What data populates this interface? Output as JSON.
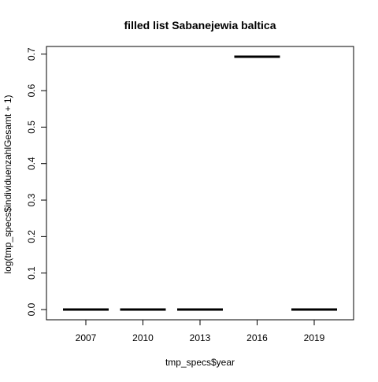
{
  "chart_data": {
    "type": "boxplot",
    "title": "filled list Sabanejewia baltica",
    "xlabel": "tmp_specs$year",
    "ylabel": "log(tmp_specs$individuenzahlGesamt + 1)",
    "categories": [
      "2007",
      "2010",
      "2013",
      "2016",
      "2019"
    ],
    "medians": [
      0,
      0,
      0,
      0.693,
      0
    ],
    "yticks": [
      0.0,
      0.1,
      0.2,
      0.3,
      0.4,
      0.5,
      0.6,
      0.7
    ],
    "ytick_labels": [
      "0.0",
      "0.1",
      "0.2",
      "0.3",
      "0.4",
      "0.5",
      "0.6",
      "0.7"
    ],
    "ylim": [
      -0.028,
      0.721
    ],
    "grid": false,
    "colors": {
      "median": "#000000",
      "frame": "#000000",
      "background": "#ffffff"
    }
  }
}
